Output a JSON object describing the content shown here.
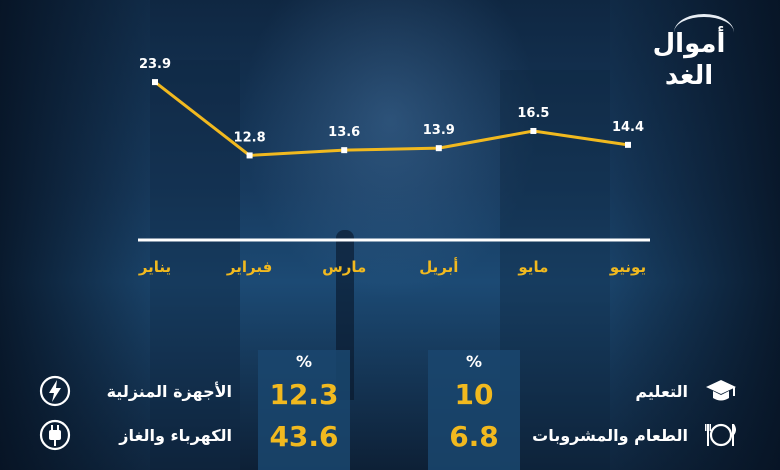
{
  "brand": {
    "logo_text": "أموال الغد"
  },
  "chart_data": {
    "type": "line",
    "categories": [
      "يناير",
      "فبراير",
      "مارس",
      "أبريل",
      "مايو",
      "يونيو"
    ],
    "values": [
      23.9,
      12.8,
      13.6,
      13.9,
      16.5,
      14.4
    ],
    "value_labels": [
      "23.9",
      "12.8",
      "13.6",
      "13.9",
      "16.5",
      "14.4"
    ],
    "title": "",
    "xlabel": "",
    "ylabel": "",
    "ylim": [
      0,
      28
    ],
    "grid": false,
    "colors": {
      "line": "#f1b91f",
      "axis": "#ffffff",
      "marker": "#ffffff",
      "labels": "#ffffff",
      "categories": "#f1b91f"
    }
  },
  "breakdown": {
    "percent_symbol": "%",
    "left_col": [
      {
        "label": "الأجهزة المنزلية",
        "value": "12.3",
        "icon": "lightning-icon"
      },
      {
        "label": "الكهرباء والغاز",
        "value": "43.6",
        "icon": "plug-icon"
      }
    ],
    "right_col": [
      {
        "label": "التعليم",
        "value": "10",
        "icon": "graduation-cap-icon"
      },
      {
        "label": "الطعام والمشروبات",
        "value": "6.8",
        "icon": "plate-cutlery-icon"
      }
    ]
  }
}
